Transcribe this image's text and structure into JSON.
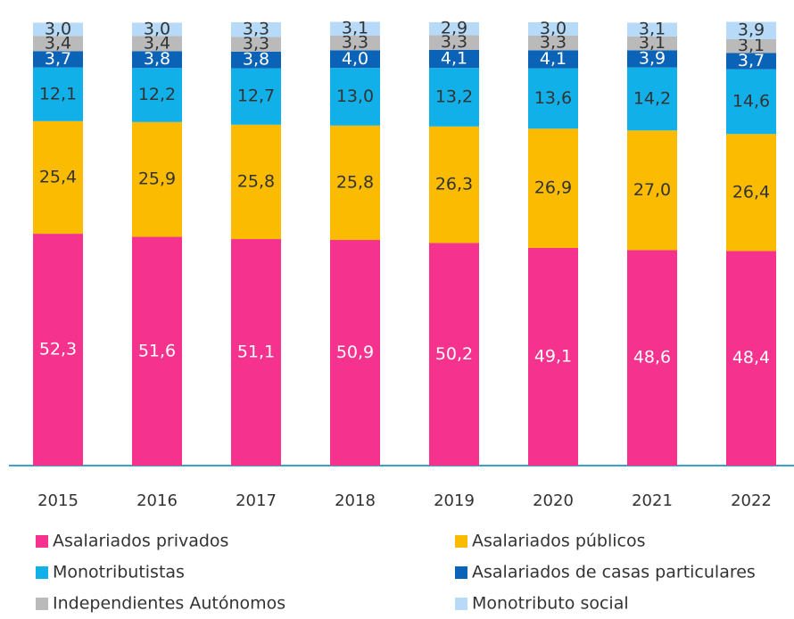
{
  "chart_data": {
    "type": "stacked_bar",
    "categories": [
      "2015",
      "2016",
      "2017",
      "2018",
      "2019",
      "2020",
      "2021",
      "2022"
    ],
    "ylim": [
      0,
      100
    ],
    "series": [
      {
        "name": "Asalariados privados",
        "color": "#f5338f",
        "label_color": "#ffffff",
        "values": [
          52.3,
          51.6,
          51.1,
          50.9,
          50.2,
          49.1,
          48.6,
          48.4
        ],
        "value_labels": [
          "52,3",
          "51,6",
          "51,1",
          "50,9",
          "50,2",
          "49,1",
          "48,6",
          "48,4"
        ]
      },
      {
        "name": "Asalariados públicos",
        "color": "#fbbb00",
        "label_color": "#333333",
        "values": [
          25.4,
          25.9,
          25.8,
          25.8,
          26.3,
          26.9,
          27.0,
          26.4
        ],
        "value_labels": [
          "25,4",
          "25,9",
          "25,8",
          "25,8",
          "26,3",
          "26,9",
          "27,0",
          "26,4"
        ]
      },
      {
        "name": "Monotributistas",
        "color": "#12b0e8",
        "label_color": "#333333",
        "values": [
          12.1,
          12.2,
          12.7,
          13.0,
          13.2,
          13.6,
          14.2,
          14.6
        ],
        "value_labels": [
          "12,1",
          "12,2",
          "12,7",
          "13,0",
          "13,2",
          "13,6",
          "14,2",
          "14,6"
        ]
      },
      {
        "name": "Asalariados de casas particulares",
        "color": "#0a63b6",
        "label_color": "#ffffff",
        "values": [
          3.7,
          3.8,
          3.8,
          4.0,
          4.1,
          4.1,
          3.9,
          3.7
        ],
        "value_labels": [
          "3,7",
          "3,8",
          "3,8",
          "4,0",
          "4,1",
          "4,1",
          "3,9",
          "3,7"
        ]
      },
      {
        "name": "Independientes Autónomos",
        "color": "#bababa",
        "label_color": "#333333",
        "values": [
          3.4,
          3.4,
          3.3,
          3.3,
          3.3,
          3.3,
          3.1,
          3.1
        ],
        "value_labels": [
          "3,4",
          "3,4",
          "3,3",
          "3,3",
          "3,3",
          "3,3",
          "3,1",
          "3,1"
        ]
      },
      {
        "name": "Monotributo social",
        "color": "#b6daf7",
        "label_color": "#333333",
        "values": [
          3.0,
          3.0,
          3.3,
          3.1,
          2.9,
          3.0,
          3.1,
          3.9
        ],
        "value_labels": [
          "3,0",
          "3,0",
          "3,3",
          "3,1",
          "2,9",
          "3,0",
          "3,1",
          "3,9"
        ]
      }
    ]
  }
}
